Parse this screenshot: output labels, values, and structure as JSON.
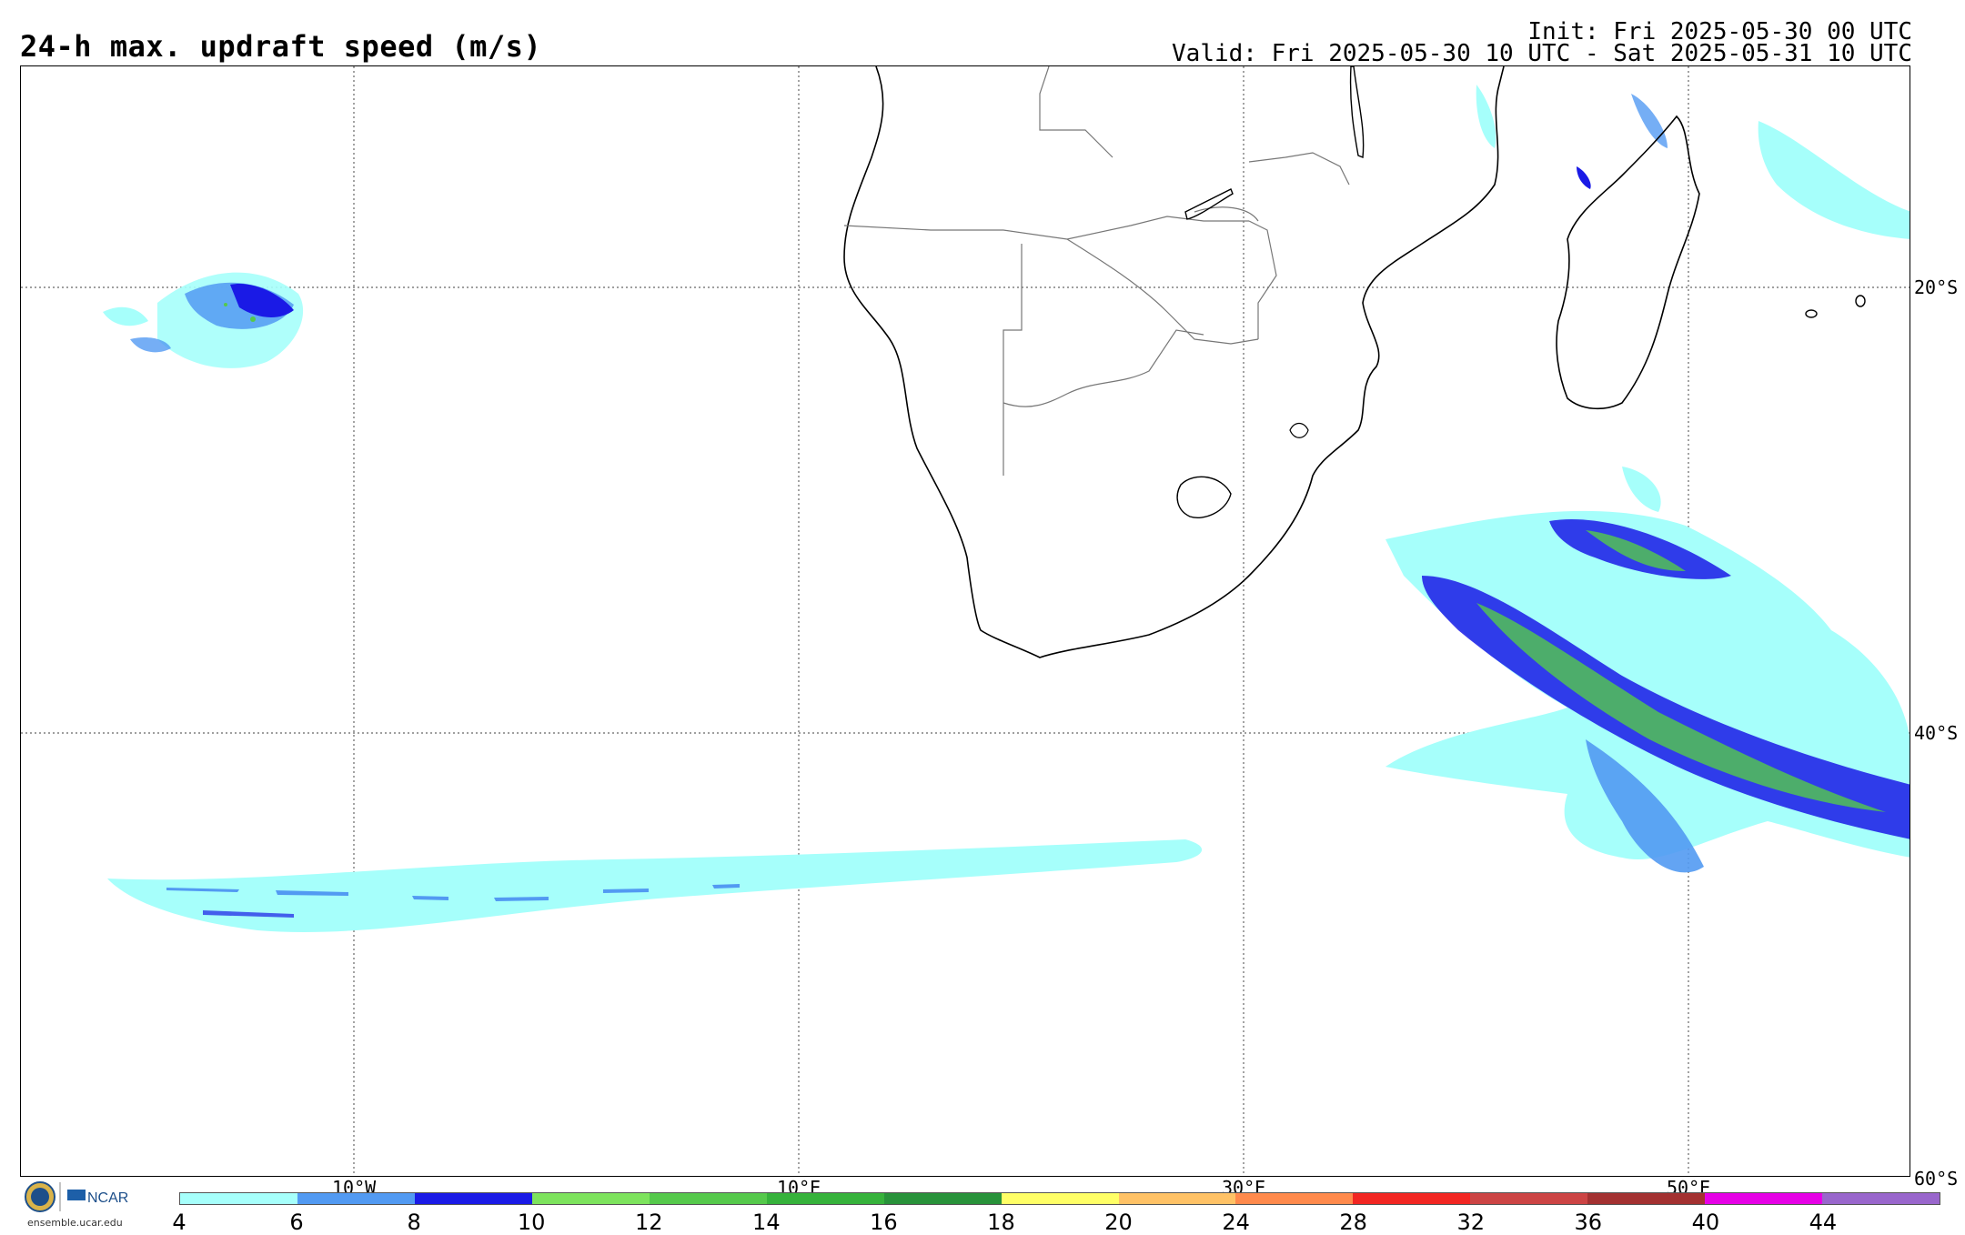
{
  "header": {
    "title": "24-h max. updraft speed (m/s)",
    "init": "Init: Fri 2025-05-30 00 UTC",
    "valid": "Valid: Fri 2025-05-30 10 UTC - Sat 2025-05-31 10 UTC"
  },
  "map": {
    "lat_labels": [
      "20°S",
      "40°S",
      "60°S"
    ],
    "lon_labels": [
      "10°W",
      "10°E",
      "30°E",
      "50°E"
    ]
  },
  "colorbar": {
    "labels": [
      "4",
      "6",
      "8",
      "10",
      "12",
      "14",
      "16",
      "18",
      "20",
      "24",
      "28",
      "32",
      "36",
      "40",
      "44"
    ],
    "colors": [
      "#a6fffb",
      "#529af2",
      "#1a1ae6",
      "#7de35d",
      "#55c94b",
      "#36b23b",
      "#28923a",
      "#ffff66",
      "#ffc266",
      "#ff8a4c",
      "#f22622",
      "#cc4444",
      "#a33131",
      "#e600e6",
      "#9966cc"
    ]
  },
  "logo": {
    "org": "NCAR",
    "site": "ensemble.ucar.edu"
  }
}
